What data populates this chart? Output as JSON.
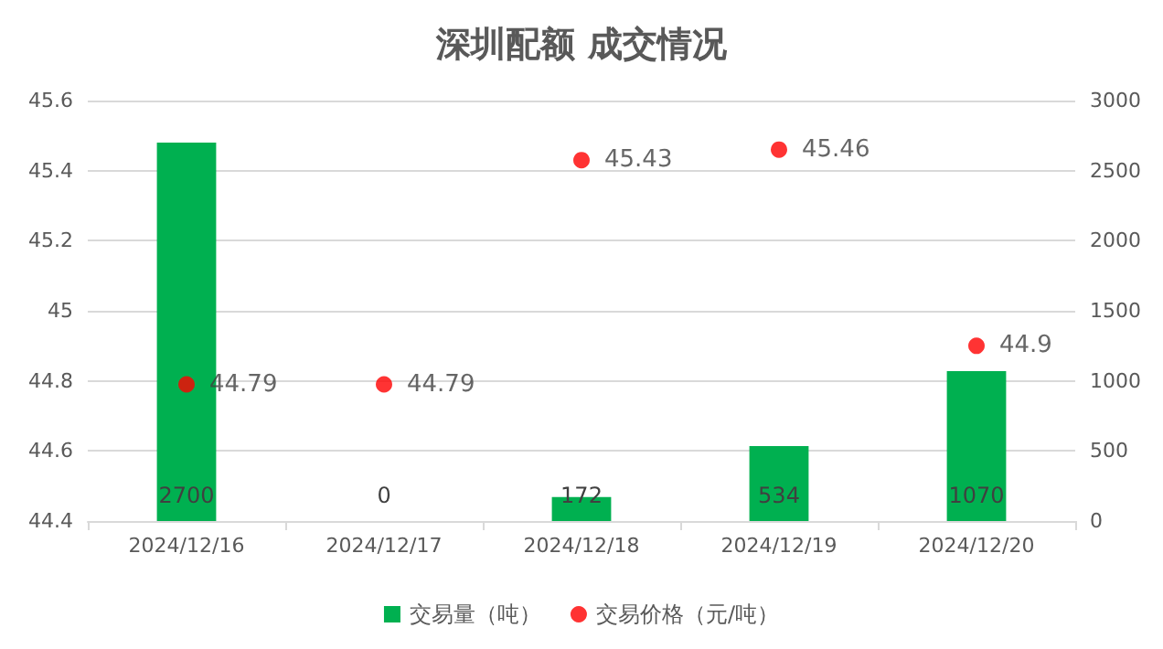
{
  "chart_data": {
    "type": "bar",
    "title": "深圳配额 成交情况",
    "categories": [
      "2024/12/16",
      "2024/12/17",
      "2024/12/18",
      "2024/12/19",
      "2024/12/20"
    ],
    "series": [
      {
        "name": "交易量（吨）",
        "axis": "y2",
        "color": "#00b050",
        "values": [
          2700,
          0,
          172,
          534,
          1070
        ]
      },
      {
        "name": "交易价格（元/吨）",
        "type": "scatter",
        "axis": "y",
        "color": "#ff0000",
        "x": [
          "2024/12/16",
          "2024/12/17",
          "2024/12/18",
          "2024/12/19",
          "2024/12/20"
        ],
        "values": [
          44.79,
          44.79,
          45.43,
          45.46,
          44.9
        ]
      }
    ],
    "ylim": [
      44.4,
      45.6
    ],
    "yticks": [
      44.4,
      44.6,
      44.8,
      45,
      45.2,
      45.4,
      45.6
    ],
    "y2lim": [
      0,
      3000
    ],
    "y2ticks": [
      0,
      500,
      1000,
      1500,
      2000,
      2500,
      3000
    ],
    "data_labels": true,
    "grid": "y",
    "legend": "bottom",
    "marker": "circle"
  }
}
